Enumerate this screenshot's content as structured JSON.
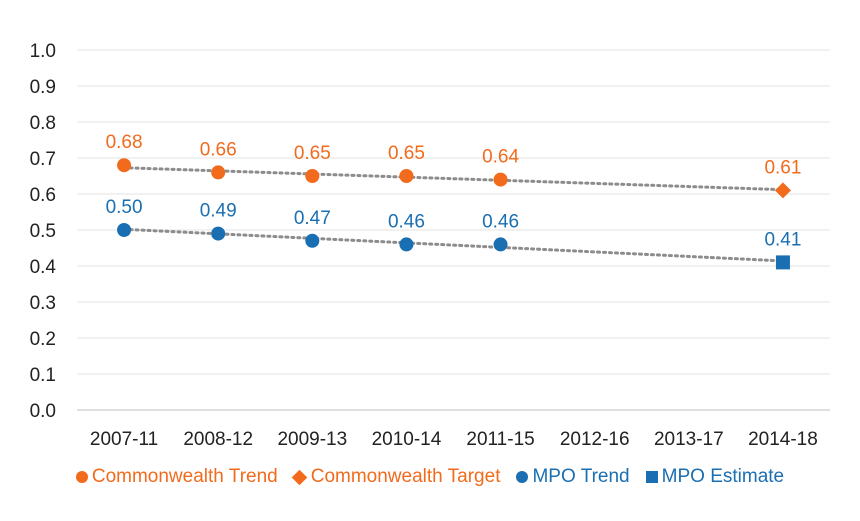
{
  "chart_data": {
    "type": "scatter",
    "categories": [
      "2007-11",
      "2008-12",
      "2009-13",
      "2010-14",
      "2011-15",
      "2012-16",
      "2013-17",
      "2014-18"
    ],
    "ylim": [
      0,
      1
    ],
    "yticks": [
      "0.0",
      "0.1",
      "0.2",
      "0.3",
      "0.4",
      "0.5",
      "0.6",
      "0.7",
      "0.8",
      "0.9",
      "1.0"
    ],
    "grid": true,
    "legend_position": "bottom",
    "series": [
      {
        "name": "Commonwealth Trend",
        "marker": "circle",
        "color": "#F26B1D",
        "points": [
          [
            "2007-11",
            0.68
          ],
          [
            "2008-12",
            0.66
          ],
          [
            "2009-13",
            0.65
          ],
          [
            "2010-14",
            0.65
          ],
          [
            "2011-15",
            0.64
          ]
        ],
        "labels": [
          "0.68",
          "0.66",
          "0.65",
          "0.65",
          "0.64"
        ]
      },
      {
        "name": "Commonwealth Target",
        "marker": "diamond",
        "color": "#F26B1D",
        "points": [
          [
            "2014-18",
            0.61
          ]
        ],
        "labels": [
          "0.61"
        ]
      },
      {
        "name": "MPO Trend",
        "marker": "circle",
        "color": "#1A6FB3",
        "points": [
          [
            "2007-11",
            0.5
          ],
          [
            "2008-12",
            0.49
          ],
          [
            "2009-13",
            0.47
          ],
          [
            "2010-14",
            0.46
          ],
          [
            "2011-15",
            0.46
          ]
        ],
        "labels": [
          "0.50",
          "0.49",
          "0.47",
          "0.46",
          "0.46"
        ]
      },
      {
        "name": "MPO Estimate",
        "marker": "square",
        "color": "#1A6FB3",
        "points": [
          [
            "2014-18",
            0.41
          ]
        ],
        "labels": [
          "0.41"
        ]
      }
    ],
    "trendlines": [
      {
        "color": "#8C8C8C",
        "from": [
          "2007-11",
          0.673
        ],
        "to": [
          "2014-18",
          0.612
        ]
      },
      {
        "color": "#8C8C8C",
        "from": [
          "2007-11",
          0.502
        ],
        "to": [
          "2014-18",
          0.414
        ]
      }
    ]
  }
}
